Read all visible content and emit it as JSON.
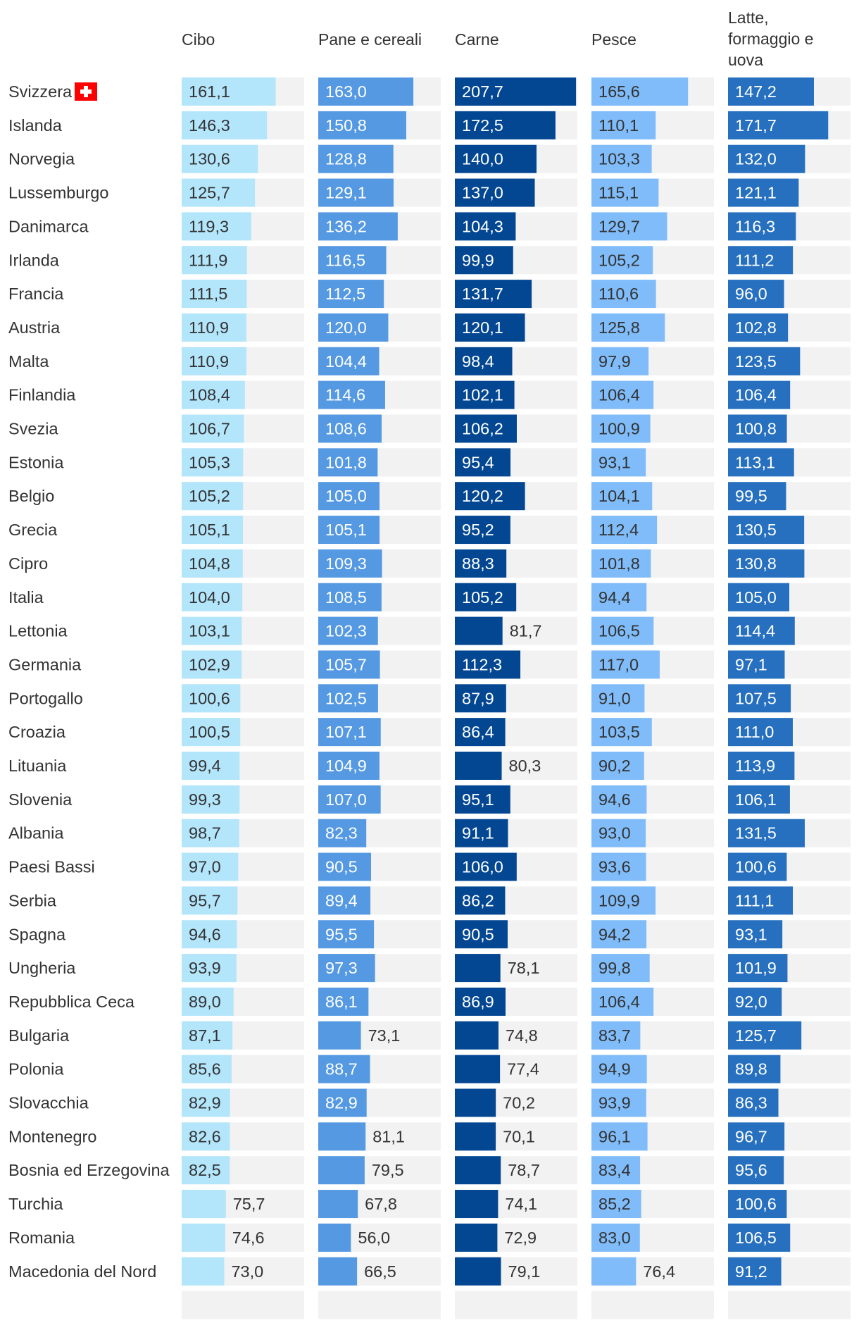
{
  "chart_data": {
    "type": "bar",
    "title": "",
    "columns": [
      "Cibo",
      "Pane e cereali",
      "Carne",
      "Pesce",
      [
        "Latte,",
        "formaggio e",
        "uova"
      ]
    ],
    "series_colors": [
      "#b3e5fb",
      "#5599e2",
      "#034792",
      "#7fbcf9",
      "#2670bf"
    ],
    "series_text_colors": [
      "#333333",
      "#ffffff",
      "#ffffff",
      "#333333",
      "#ffffff"
    ],
    "track_color": "#f2f2f2",
    "xlim": [
      0,
      210
    ],
    "flag": {
      "country": "Svizzera",
      "color": "#ff0000",
      "symbol": "cross"
    },
    "rows": [
      {
        "country": "Svizzera",
        "values": [
          161.1,
          163.0,
          207.7,
          165.6,
          147.2
        ],
        "labels": [
          "161,1",
          "163,0",
          "207,7",
          "165,6",
          "147,2"
        ]
      },
      {
        "country": "Islanda",
        "values": [
          146.3,
          150.8,
          172.5,
          110.1,
          171.7
        ],
        "labels": [
          "146,3",
          "150,8",
          "172,5",
          "110,1",
          "171,7"
        ]
      },
      {
        "country": "Norvegia",
        "values": [
          130.6,
          128.8,
          140.0,
          103.3,
          132.0
        ],
        "labels": [
          "130,6",
          "128,8",
          "140,0",
          "103,3",
          "132,0"
        ]
      },
      {
        "country": "Lussemburgo",
        "values": [
          125.7,
          129.1,
          137.0,
          115.1,
          121.1
        ],
        "labels": [
          "125,7",
          "129,1",
          "137,0",
          "115,1",
          "121,1"
        ]
      },
      {
        "country": "Danimarca",
        "values": [
          119.3,
          136.2,
          104.3,
          129.7,
          116.3
        ],
        "labels": [
          "119,3",
          "136,2",
          "104,3",
          "129,7",
          "116,3"
        ]
      },
      {
        "country": "Irlanda",
        "values": [
          111.9,
          116.5,
          99.9,
          105.2,
          111.2
        ],
        "labels": [
          "111,9",
          "116,5",
          "99,9",
          "105,2",
          "111,2"
        ]
      },
      {
        "country": "Francia",
        "values": [
          111.5,
          112.5,
          131.7,
          110.6,
          96.0
        ],
        "labels": [
          "111,5",
          "112,5",
          "131,7",
          "110,6",
          "96,0"
        ]
      },
      {
        "country": "Austria",
        "values": [
          110.9,
          120.0,
          120.1,
          125.8,
          102.8
        ],
        "labels": [
          "110,9",
          "120,0",
          "120,1",
          "125,8",
          "102,8"
        ]
      },
      {
        "country": "Malta",
        "values": [
          110.9,
          104.4,
          98.4,
          97.9,
          123.5
        ],
        "labels": [
          "110,9",
          "104,4",
          "98,4",
          "97,9",
          "123,5"
        ]
      },
      {
        "country": "Finlandia",
        "values": [
          108.4,
          114.6,
          102.1,
          106.4,
          106.4
        ],
        "labels": [
          "108,4",
          "114,6",
          "102,1",
          "106,4",
          "106,4"
        ]
      },
      {
        "country": "Svezia",
        "values": [
          106.7,
          108.6,
          106.2,
          100.9,
          100.8
        ],
        "labels": [
          "106,7",
          "108,6",
          "106,2",
          "100,9",
          "100,8"
        ]
      },
      {
        "country": "Estonia",
        "values": [
          105.3,
          101.8,
          95.4,
          93.1,
          113.1
        ],
        "labels": [
          "105,3",
          "101,8",
          "95,4",
          "93,1",
          "113,1"
        ]
      },
      {
        "country": "Belgio",
        "values": [
          105.2,
          105.0,
          120.2,
          104.1,
          99.5
        ],
        "labels": [
          "105,2",
          "105,0",
          "120,2",
          "104,1",
          "99,5"
        ]
      },
      {
        "country": "Grecia",
        "values": [
          105.1,
          105.1,
          95.2,
          112.4,
          130.5
        ],
        "labels": [
          "105,1",
          "105,1",
          "95,2",
          "112,4",
          "130,5"
        ]
      },
      {
        "country": "Cipro",
        "values": [
          104.8,
          109.3,
          88.3,
          101.8,
          130.8
        ],
        "labels": [
          "104,8",
          "109,3",
          "88,3",
          "101,8",
          "130,8"
        ]
      },
      {
        "country": "Italia",
        "values": [
          104.0,
          108.5,
          105.2,
          94.4,
          105.0
        ],
        "labels": [
          "104,0",
          "108,5",
          "105,2",
          "94,4",
          "105,0"
        ]
      },
      {
        "country": "Lettonia",
        "values": [
          103.1,
          102.3,
          81.7,
          106.5,
          114.4
        ],
        "labels": [
          "103,1",
          "102,3",
          "81,7",
          "106,5",
          "114,4"
        ]
      },
      {
        "country": "Germania",
        "values": [
          102.9,
          105.7,
          112.3,
          117.0,
          97.1
        ],
        "labels": [
          "102,9",
          "105,7",
          "112,3",
          "117,0",
          "97,1"
        ]
      },
      {
        "country": "Portogallo",
        "values": [
          100.6,
          102.5,
          87.9,
          91.0,
          107.5
        ],
        "labels": [
          "100,6",
          "102,5",
          "87,9",
          "91,0",
          "107,5"
        ]
      },
      {
        "country": "Croazia",
        "values": [
          100.5,
          107.1,
          86.4,
          103.5,
          111.0
        ],
        "labels": [
          "100,5",
          "107,1",
          "86,4",
          "103,5",
          "111,0"
        ]
      },
      {
        "country": "Lituania",
        "values": [
          99.4,
          104.9,
          80.3,
          90.2,
          113.9
        ],
        "labels": [
          "99,4",
          "104,9",
          "80,3",
          "90,2",
          "113,9"
        ]
      },
      {
        "country": "Slovenia",
        "values": [
          99.3,
          107.0,
          95.1,
          94.6,
          106.1
        ],
        "labels": [
          "99,3",
          "107,0",
          "95,1",
          "94,6",
          "106,1"
        ]
      },
      {
        "country": "Albania",
        "values": [
          98.7,
          82.3,
          91.1,
          93.0,
          131.5
        ],
        "labels": [
          "98,7",
          "82,3",
          "91,1",
          "93,0",
          "131,5"
        ]
      },
      {
        "country": "Paesi Bassi",
        "values": [
          97.0,
          90.5,
          106.0,
          93.6,
          100.6
        ],
        "labels": [
          "97,0",
          "90,5",
          "106,0",
          "93,6",
          "100,6"
        ]
      },
      {
        "country": "Serbia",
        "values": [
          95.7,
          89.4,
          86.2,
          109.9,
          111.1
        ],
        "labels": [
          "95,7",
          "89,4",
          "86,2",
          "109,9",
          "111,1"
        ]
      },
      {
        "country": "Spagna",
        "values": [
          94.6,
          95.5,
          90.5,
          94.2,
          93.1
        ],
        "labels": [
          "94,6",
          "95,5",
          "90,5",
          "94,2",
          "93,1"
        ]
      },
      {
        "country": "Ungheria",
        "values": [
          93.9,
          97.3,
          78.1,
          99.8,
          101.9
        ],
        "labels": [
          "93,9",
          "97,3",
          "78,1",
          "99,8",
          "101,9"
        ]
      },
      {
        "country": "Repubblica Ceca",
        "values": [
          89.0,
          86.1,
          86.9,
          106.4,
          92.0
        ],
        "labels": [
          "89,0",
          "86,1",
          "86,9",
          "106,4",
          "92,0"
        ]
      },
      {
        "country": "Bulgaria",
        "values": [
          87.1,
          73.1,
          74.8,
          83.7,
          125.7
        ],
        "labels": [
          "87,1",
          "73,1",
          "74,8",
          "83,7",
          "125,7"
        ]
      },
      {
        "country": "Polonia",
        "values": [
          85.6,
          88.7,
          77.4,
          94.9,
          89.8
        ],
        "labels": [
          "85,6",
          "88,7",
          "77,4",
          "94,9",
          "89,8"
        ]
      },
      {
        "country": "Slovacchia",
        "values": [
          82.9,
          82.9,
          70.2,
          93.9,
          86.3
        ],
        "labels": [
          "82,9",
          "82,9",
          "70,2",
          "93,9",
          "86,3"
        ]
      },
      {
        "country": "Montenegro",
        "values": [
          82.6,
          81.1,
          70.1,
          96.1,
          96.7
        ],
        "labels": [
          "82,6",
          "81,1",
          "70,1",
          "96,1",
          "96,7"
        ]
      },
      {
        "country": "Bosnia ed Erzegovina",
        "values": [
          82.5,
          79.5,
          78.7,
          83.4,
          95.6
        ],
        "labels": [
          "82,5",
          "79,5",
          "78,7",
          "83,4",
          "95,6"
        ]
      },
      {
        "country": "Turchia",
        "values": [
          75.7,
          67.8,
          74.1,
          85.2,
          100.6
        ],
        "labels": [
          "75,7",
          "67,8",
          "74,1",
          "85,2",
          "100,6"
        ]
      },
      {
        "country": "Romania",
        "values": [
          74.6,
          56.0,
          72.9,
          83.0,
          106.5
        ],
        "labels": [
          "74,6",
          "56,0",
          "72,9",
          "83,0",
          "106,5"
        ]
      },
      {
        "country": "Macedonia del Nord",
        "values": [
          73.0,
          66.5,
          79.1,
          76.4,
          91.2
        ],
        "labels": [
          "73,0",
          "66,5",
          "79,1",
          "76,4",
          "91,2"
        ]
      }
    ]
  }
}
